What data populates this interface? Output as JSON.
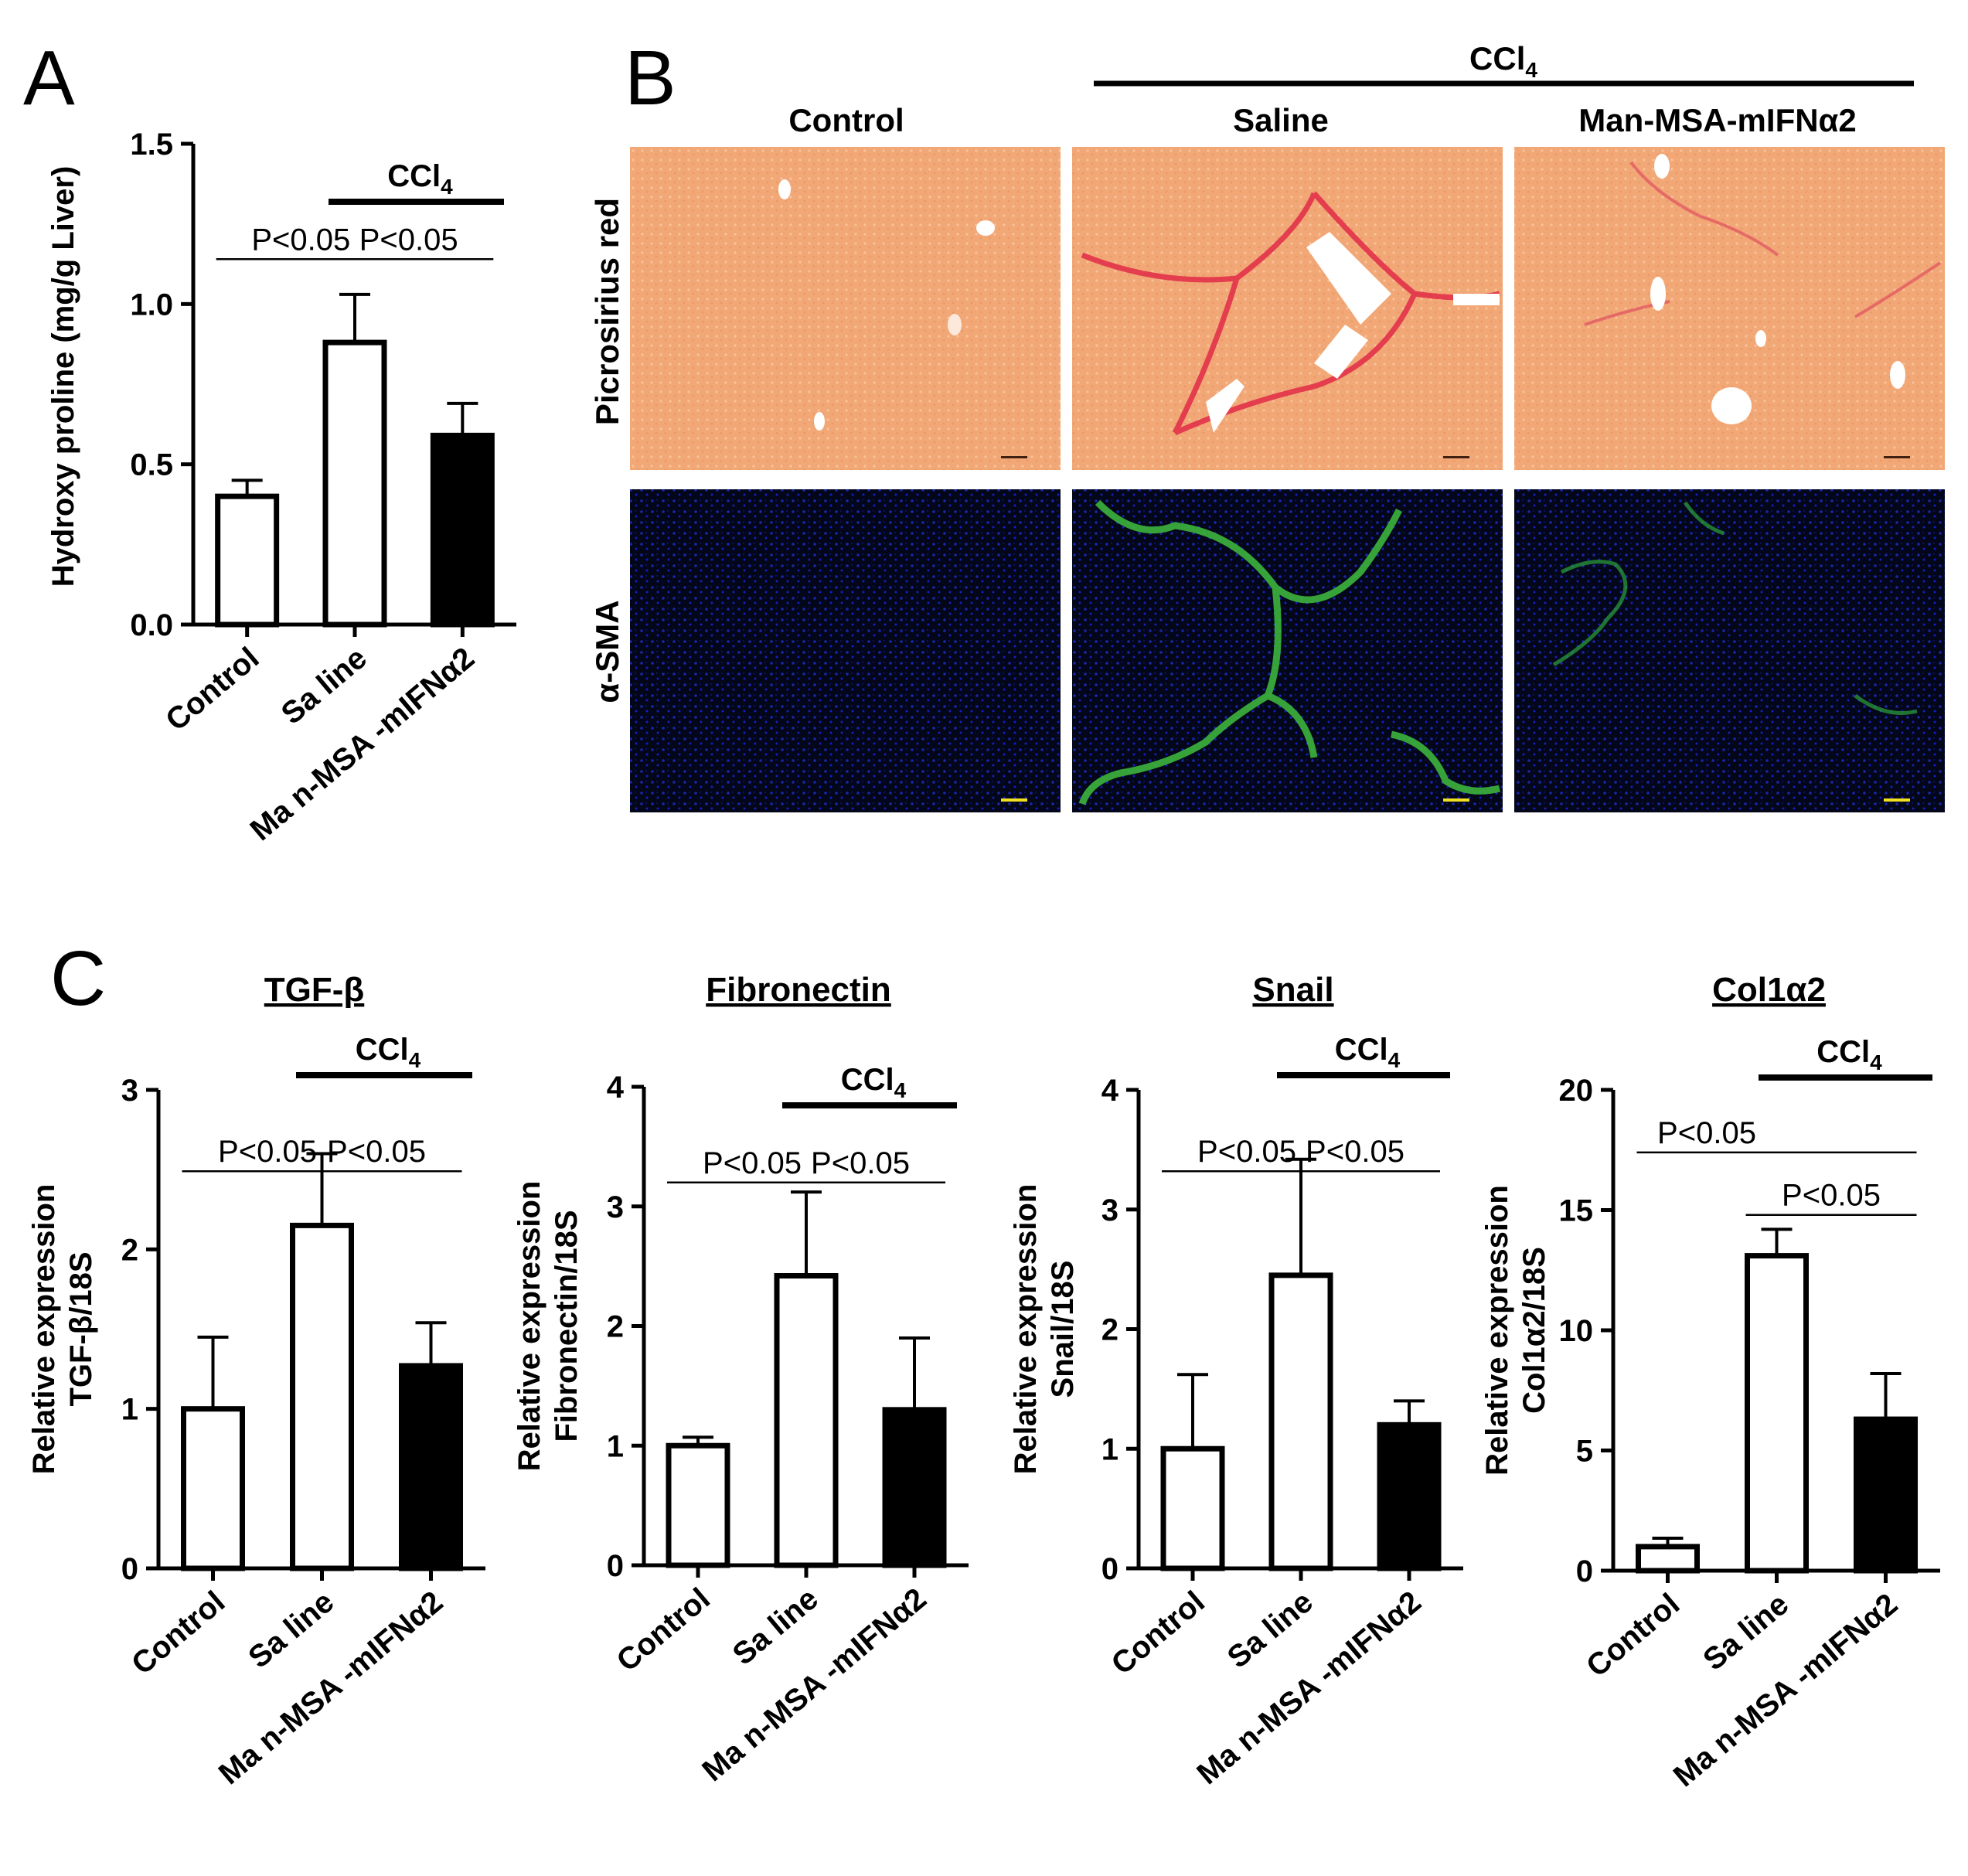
{
  "figure": {
    "panel_labels": [
      "A",
      "B",
      "C"
    ],
    "treatment_label": "CCl",
    "treatment_subscript": "4",
    "micrograph": {
      "columns": [
        "Control",
        "Saline",
        "Man-MSA-mIFNα2"
      ],
      "rows": [
        "Picrosirius red",
        "α-SMA"
      ],
      "colors": {
        "picrosirius_bg": "#f0a070",
        "fibrosis": "#e0203a",
        "nuclei": "#1020a0",
        "sma": "#40b040",
        "scalebar_dark": "#402010",
        "scalebar_yellow": "#f0e020"
      }
    }
  },
  "chart_data": [
    {
      "type": "bar",
      "title": "",
      "ylabel": "Hydroxy proline (mg/g Liver)",
      "categories": [
        "Control",
        "Sa line",
        "Ma n-MSA  -mIFNα2"
      ],
      "values": [
        0.4,
        0.88,
        0.59
      ],
      "errors": [
        0.05,
        0.15,
        0.1
      ],
      "fills": [
        "#ffffff",
        "#ffffff",
        "#000000"
      ],
      "ylim": [
        0,
        1.5
      ],
      "yticks": [
        "0.0",
        "0.5",
        "1.0",
        "1.5"
      ],
      "ytick_values": [
        0,
        0.5,
        1.0,
        1.5
      ],
      "annotations": [
        "P<0.05",
        "P<0.05"
      ]
    },
    {
      "type": "bar",
      "title": "TGF-β",
      "ylabel": "Relative expression TGF-β/18S",
      "ylabel_lines": [
        "Relative expression",
        "TGF-β/18S"
      ],
      "categories": [
        "Control",
        "Sa line",
        "Ma n-MSA  -mIFNα2"
      ],
      "values": [
        1.0,
        2.15,
        1.27
      ],
      "errors": [
        0.45,
        0.45,
        0.27
      ],
      "fills": [
        "#ffffff",
        "#ffffff",
        "#000000"
      ],
      "ylim": [
        0,
        3
      ],
      "yticks": [
        "0",
        "1",
        "2",
        "3"
      ],
      "ytick_values": [
        0,
        1,
        2,
        3
      ],
      "annotations": [
        "P<0.05",
        "P<0.05"
      ]
    },
    {
      "type": "bar",
      "title": "Fibronectin",
      "ylabel": "Relative expression Fibronectin/18S",
      "ylabel_lines": [
        "Relative expression",
        "Fibronectin/18S"
      ],
      "categories": [
        "Control",
        "Sa line",
        "Ma n-MSA  -mIFNα2"
      ],
      "values": [
        1.0,
        2.42,
        1.3
      ],
      "errors": [
        0.07,
        0.7,
        0.6
      ],
      "fills": [
        "#ffffff",
        "#ffffff",
        "#000000"
      ],
      "ylim": [
        0,
        4
      ],
      "yticks": [
        "0",
        "1",
        "2",
        "3",
        "4"
      ],
      "ytick_values": [
        0,
        1,
        2,
        3,
        4
      ],
      "annotations": [
        "P<0.05",
        "P<0.05"
      ]
    },
    {
      "type": "bar",
      "title": "Snail",
      "ylabel": "Relative expression Snail/18S",
      "ylabel_lines": [
        "Relative expression",
        "Snail/18S"
      ],
      "categories": [
        "Control",
        "Sa line",
        "Ma n-MSA  -mIFNα2"
      ],
      "values": [
        1.0,
        2.45,
        1.2
      ],
      "errors": [
        0.62,
        0.97,
        0.2
      ],
      "fills": [
        "#ffffff",
        "#ffffff",
        "#000000"
      ],
      "ylim": [
        0,
        4
      ],
      "yticks": [
        "0",
        "1",
        "2",
        "3",
        "4"
      ],
      "ytick_values": [
        0,
        1,
        2,
        3,
        4
      ],
      "annotations": [
        "P<0.05",
        "P<0.05"
      ]
    },
    {
      "type": "bar",
      "title": "Col1α2",
      "ylabel": "Relative expression Col1α2/18S",
      "ylabel_lines": [
        "Relative expression",
        "Col1α2/18S"
      ],
      "categories": [
        "Control",
        "Sa line",
        "Ma n-MSA  -mIFNα2"
      ],
      "values": [
        1.0,
        13.1,
        6.3
      ],
      "errors": [
        0.35,
        1.1,
        1.9
      ],
      "fills": [
        "#ffffff",
        "#ffffff",
        "#000000"
      ],
      "ylim": [
        0,
        20
      ],
      "yticks": [
        "0",
        "5",
        "10",
        "15",
        "20"
      ],
      "ytick_values": [
        0,
        5,
        10,
        15,
        20
      ],
      "annotations": [
        "P<0.05",
        "P<0.05"
      ]
    }
  ]
}
